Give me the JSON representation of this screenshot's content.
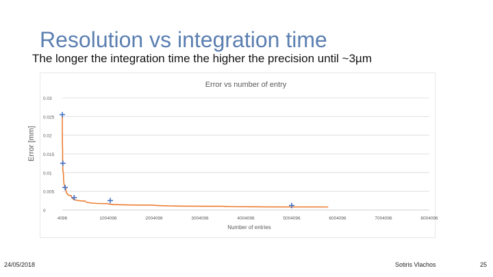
{
  "slide": {
    "title": "Resolution vs integration time",
    "subtitle": "The longer the integration time the higher the precision until ~3µm",
    "date": "24/05/2018",
    "author": "Sotiris Vlachos",
    "page": "25"
  },
  "colors": {
    "title": "#5b7fb1",
    "marker": "#4472c4",
    "trend": "#ed7d31",
    "grid": "#d9d9d9",
    "axis_text": "#595959"
  },
  "chart_data": {
    "type": "scatter",
    "title": "Error vs number of entry",
    "xlabel": "Number of entries",
    "ylabel": "Error [mm]",
    "xlim": [
      4096,
      8004096
    ],
    "ylim": [
      0,
      0.03
    ],
    "x_ticks": [
      4096,
      1004096,
      2004096,
      3004096,
      4004096,
      5004096,
      6004096,
      7004096,
      8004096
    ],
    "x_tick_labels": [
      "4096",
      "1004096",
      "2004096",
      "3004096",
      "4004096",
      "5004096",
      "6004096",
      "7004096",
      "8004096"
    ],
    "y_ticks": [
      0,
      0.005,
      0.01,
      0.015,
      0.02,
      0.025,
      0.03
    ],
    "y_tick_labels": [
      "0",
      "0.005",
      "0.01",
      "0.015",
      "0.02",
      "0.025",
      "0.03"
    ],
    "grid": true,
    "marker": "plus",
    "series": [
      {
        "x": [
          4096,
          16384,
          65536,
          262144,
          1048576,
          5004096
        ],
        "y": [
          0.0255,
          0.0125,
          0.006,
          0.0033,
          0.0025,
          0.0012
        ]
      }
    ],
    "trendline": {
      "type": "power",
      "x": [
        4096,
        10000,
        30000,
        80000,
        200000,
        500000,
        1000000,
        2000000,
        3500000,
        5800000
      ],
      "y": [
        0.0255,
        0.0165,
        0.0096,
        0.0059,
        0.0038,
        0.0024,
        0.0017,
        0.0013,
        0.001,
        0.0008
      ]
    }
  }
}
